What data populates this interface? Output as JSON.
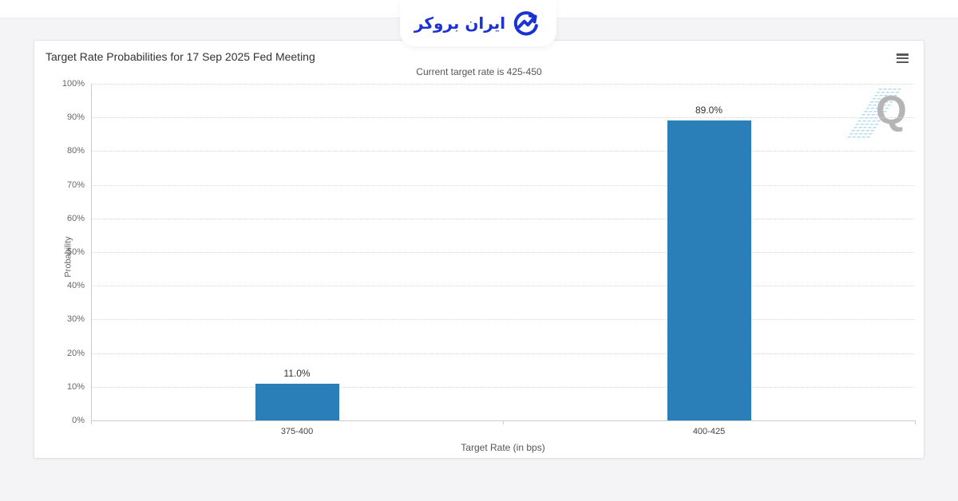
{
  "brand": {
    "name": "ایران بروکر",
    "color": "#1b33d4"
  },
  "menu": {
    "icon": "hamburger-menu"
  },
  "watermark": {
    "letter": "Q"
  },
  "chart_data": {
    "type": "bar",
    "title": "Target Rate Probabilities for 17 Sep 2025 Fed Meeting",
    "subtitle": "Current target rate is 425-450",
    "categories": [
      "375-400",
      "400-425"
    ],
    "values": [
      11.0,
      89.0
    ],
    "value_labels": [
      "11.0%",
      "89.0%"
    ],
    "xlabel": "Target Rate (in bps)",
    "ylabel": "Probability",
    "ylim": [
      0,
      100
    ],
    "ytick_step": 10,
    "ytick_suffix": "%",
    "bar_color": "#2b7fb9",
    "axis_color": "#cccccc",
    "grid": "dotted",
    "legend": "none"
  }
}
